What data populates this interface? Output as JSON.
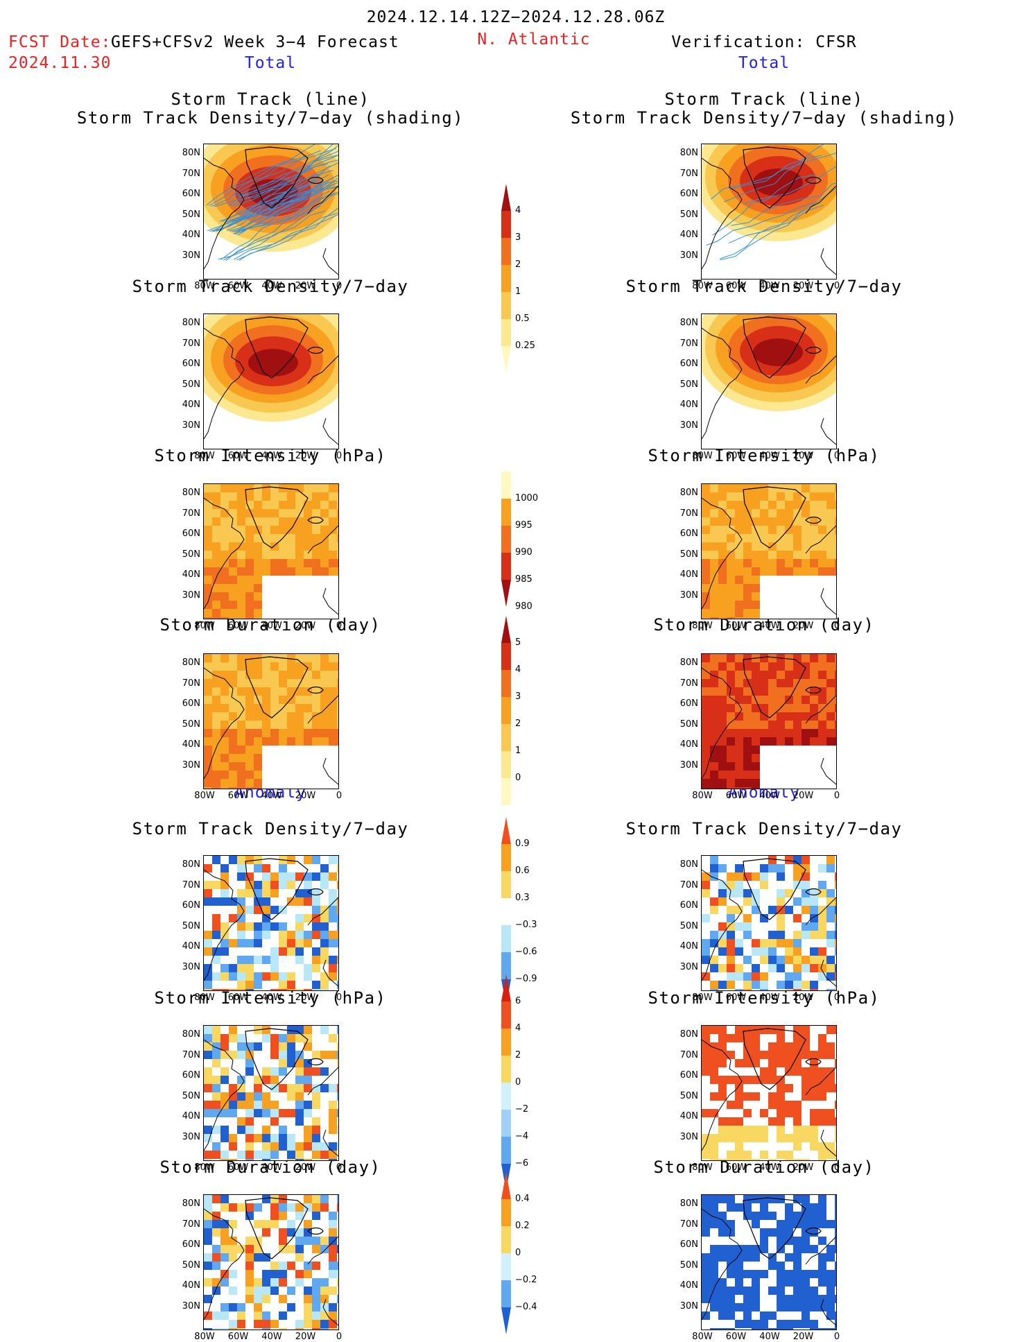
{
  "header": {
    "period": "2024.12.14.12Z−2024.12.28.06Z",
    "fcst_date_label": "FCST Date:",
    "fcst_model": "GEFS+CFSv2 Week 3−4 Forecast",
    "fcst_date": "2024.11.30",
    "region": "N. Atlantic",
    "verification": "Verification: CFSR"
  },
  "sections": {
    "total": "Total",
    "anomaly": "Anomaly"
  },
  "panel_titles": {
    "track_line": "Storm Track (line)",
    "track_density_shading": "Storm Track Density/7−day (shading)",
    "track_density": "Storm Track Density/7−day",
    "intensity": "Storm Intensity (hPa)",
    "duration": "Storm Duration (day)"
  },
  "axes": {
    "lat_ticks": [
      "80N",
      "70N",
      "60N",
      "50N",
      "40N",
      "30N"
    ],
    "lon_ticks": [
      "80W",
      "60W",
      "40W",
      "20W",
      "0"
    ]
  },
  "colorbars": {
    "density_total": {
      "labels": [
        "4",
        "3",
        "2",
        "1",
        "0.5",
        "0.25"
      ],
      "colors": [
        "#a01010",
        "#d83018",
        "#f07020",
        "#f8a020",
        "#f8c850",
        "#fce890",
        "#fff8c0"
      ]
    },
    "intensity_total": {
      "labels": [
        "1000",
        "995",
        "990",
        "985",
        "980"
      ],
      "colors": [
        "#fff8c0",
        "#f8a020",
        "#f07020",
        "#d83018",
        "#a01010"
      ]
    },
    "duration_total": {
      "labels": [
        "5",
        "4",
        "3",
        "2",
        "1",
        "0"
      ],
      "colors": [
        "#a01010",
        "#d83018",
        "#f07020",
        "#f8a020",
        "#f8c850",
        "#fce890",
        "#fff8c0"
      ]
    },
    "density_anom": {
      "labels": [
        "0.9",
        "0.6",
        "0.3",
        "−0.3",
        "−0.6",
        "−0.9"
      ],
      "colors": [
        "#f05020",
        "#f8a020",
        "#f8d860",
        "#ffffff",
        "#b8e8f8",
        "#60a8f0",
        "#2060d0"
      ]
    },
    "intensity_anom": {
      "labels": [
        "6",
        "4",
        "2",
        "0",
        "−2",
        "−4",
        "−6"
      ],
      "colors": [
        "#d82010",
        "#f05020",
        "#f8a020",
        "#f8d860",
        "#d0f0fc",
        "#a0d0f8",
        "#60a8f0",
        "#2060d0"
      ]
    },
    "duration_anom": {
      "labels": [
        "0.4",
        "0.2",
        "0",
        "−0.2",
        "−0.4"
      ],
      "colors": [
        "#f05020",
        "#f8a020",
        "#f8d860",
        "#d0f0fc",
        "#60a8f0",
        "#2060d0"
      ]
    }
  },
  "colors": {
    "header_red": "#f02020",
    "section_blue": "#2020f0",
    "track_line": "#3090e0"
  }
}
